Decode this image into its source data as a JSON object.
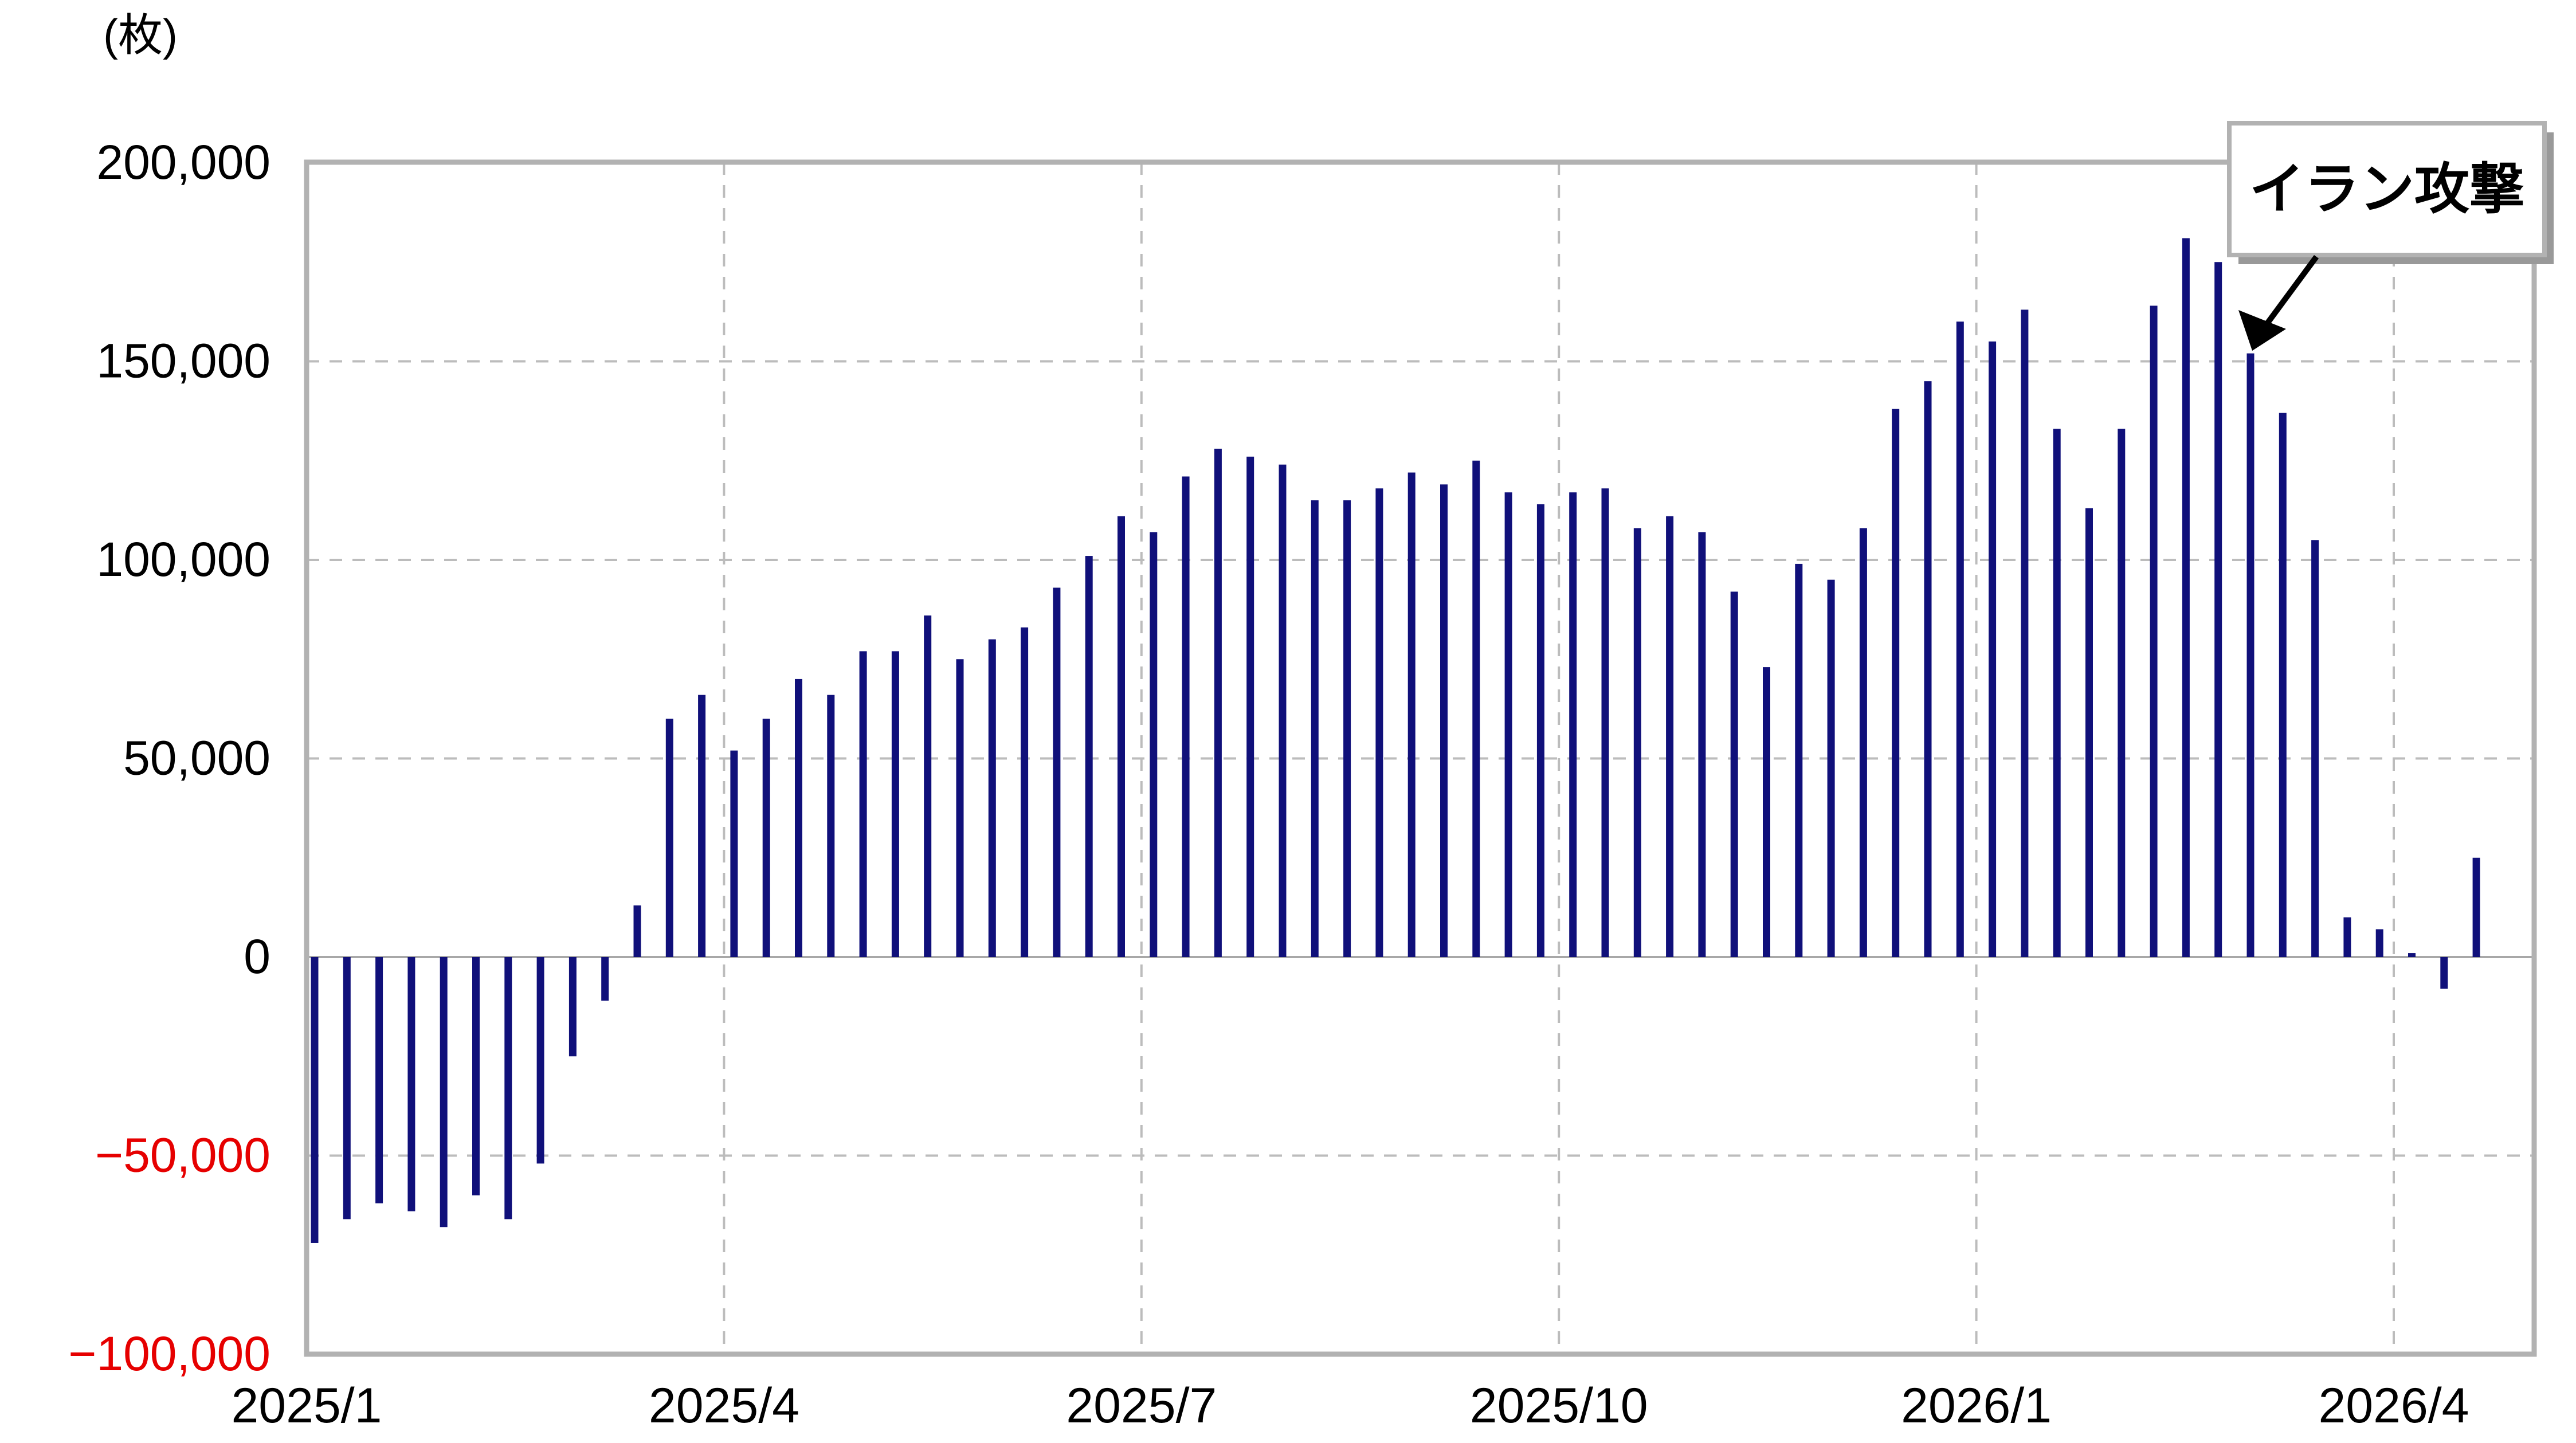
{
  "chart_data": {
    "type": "bar",
    "unit_label": "(枚)",
    "y_axis": {
      "tick_values": [
        200000,
        150000,
        100000,
        50000,
        0,
        -50000,
        -100000
      ],
      "tick_labels": [
        "200,000",
        "150,000",
        "100,000",
        "50,000",
        "0",
        "−50,000",
        "−100,000"
      ],
      "ylim": [
        -100000,
        200000
      ],
      "grid": "dashed horizontal lines every 50,000; solid zero line; solid outer border",
      "negative_labels_red": true
    },
    "x_axis": {
      "tick_labels": [
        "2025/1",
        "2025/4",
        "2025/7",
        "2025/10",
        "2026/1",
        "2026/4"
      ],
      "cadence": "weekly bars"
    },
    "values": [
      -72000,
      -66000,
      -62000,
      -64000,
      -68000,
      -60000,
      -66000,
      -52000,
      -25000,
      -11000,
      13000,
      60000,
      66000,
      52000,
      60000,
      70000,
      66000,
      77000,
      77000,
      86000,
      75000,
      80000,
      83000,
      93000,
      101000,
      111000,
      107000,
      121000,
      128000,
      126000,
      124000,
      115000,
      115000,
      118000,
      122000,
      119000,
      125000,
      117000,
      114000,
      117000,
      118000,
      108000,
      111000,
      107000,
      92000,
      73000,
      99000,
      95000,
      108000,
      138000,
      145000,
      160000,
      155000,
      163000,
      133000,
      113000,
      133000,
      164000,
      181000,
      175000,
      152000,
      137000,
      105000,
      10000,
      7000,
      1000,
      -8000,
      25000
    ],
    "annotation": {
      "text": "イラン攻撃",
      "target_bar_index": 60,
      "target_value": 152000
    },
    "colors": {
      "bar": "#10107a",
      "negative_tick_label": "#e60000",
      "grid_dashed": "#bcbcbc",
      "border": "#b2b2b2",
      "zero_line": "#a8a8a8",
      "text": "#000000",
      "annotation_shadow": "#999999"
    },
    "legend": "none"
  }
}
